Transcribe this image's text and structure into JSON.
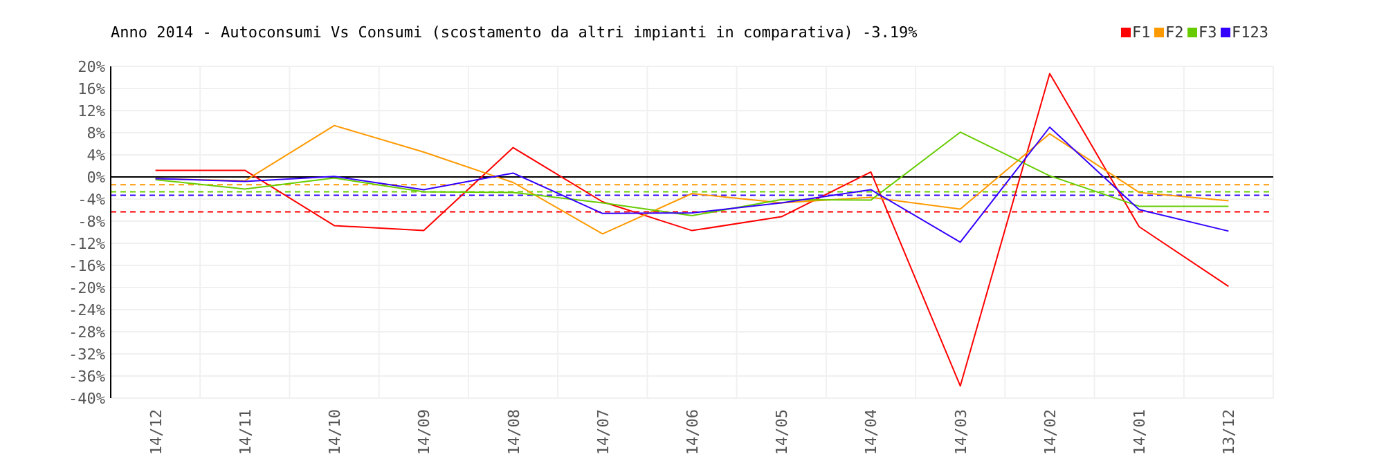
{
  "chart_data": {
    "type": "line",
    "title": "Anno 2014 - Autoconsumi Vs Consumi (scostamento da altri impianti in comparativa) -3.19%",
    "categories": [
      "14/12",
      "14/11",
      "14/10",
      "14/09",
      "14/08",
      "14/07",
      "14/06",
      "14/05",
      "14/04",
      "14/03",
      "14/02",
      "14/01",
      "13/12"
    ],
    "series": [
      {
        "name": "F1",
        "color": "#ff0000",
        "values": [
          1.2,
          1.2,
          -8.8,
          -9.7,
          5.3,
          -4.5,
          -9.7,
          -7.2,
          0.9,
          -37.8,
          18.7,
          -9,
          -19.8
        ]
      },
      {
        "name": "F2",
        "color": "#ff9900",
        "values": [
          -0.3,
          -0.7,
          9.3,
          4.5,
          -1,
          -10.3,
          -3,
          -4.7,
          -3.7,
          -5.8,
          7.8,
          -2.8,
          -4.3
        ]
      },
      {
        "name": "F3",
        "color": "#66cc00",
        "values": [
          -0.5,
          -2.2,
          -0.2,
          -2.7,
          -2.8,
          -4.7,
          -7,
          -4.1,
          -4.2,
          8.1,
          0.2,
          -5.3,
          -5.3
        ]
      },
      {
        "name": "F123",
        "color": "#3300ff",
        "values": [
          -0.3,
          -0.8,
          0.1,
          -2.3,
          0.7,
          -6.6,
          -6.5,
          -4.7,
          -2.3,
          -11.8,
          9,
          -5.9,
          -9.8
        ]
      }
    ],
    "ylim": [
      -40,
      20
    ],
    "yticks": [
      {
        "value": -40,
        "label": "-40%"
      },
      {
        "value": -36,
        "label": "-36%"
      },
      {
        "value": -32,
        "label": "-32%"
      },
      {
        "value": -28,
        "label": "-28%"
      },
      {
        "value": -24,
        "label": "-24%"
      },
      {
        "value": -20,
        "label": "-20%"
      },
      {
        "value": -16,
        "label": "-16%"
      },
      {
        "value": -12,
        "label": "-12%"
      },
      {
        "value": -8,
        "label": "-8%"
      },
      {
        "value": -4,
        "label": "-4%"
      },
      {
        "value": 0,
        "label": "0%"
      },
      {
        "value": 4,
        "label": "4%"
      },
      {
        "value": 8,
        "label": "8%"
      },
      {
        "value": 12,
        "label": "12%"
      },
      {
        "value": 16,
        "label": "16%"
      },
      {
        "value": 20,
        "label": "20%"
      }
    ],
    "ref_lines": [
      {
        "axis": "y",
        "value": 0,
        "color": "#000000",
        "line_style": "solid"
      },
      {
        "axis": "y",
        "value": -1.4,
        "color": "#ff9900",
        "line_style": "dashed"
      },
      {
        "axis": "y",
        "value": -2.7,
        "color": "#66cc00",
        "line_style": "dashed"
      },
      {
        "axis": "y",
        "value": -3.3,
        "color": "#3300ff",
        "line_style": "dashed"
      },
      {
        "axis": "y",
        "value": -6.3,
        "color": "#ff0000",
        "line_style": "dashed"
      }
    ],
    "grid": true,
    "legend": "top right",
    "marker": "none",
    "line_style": "solid"
  }
}
